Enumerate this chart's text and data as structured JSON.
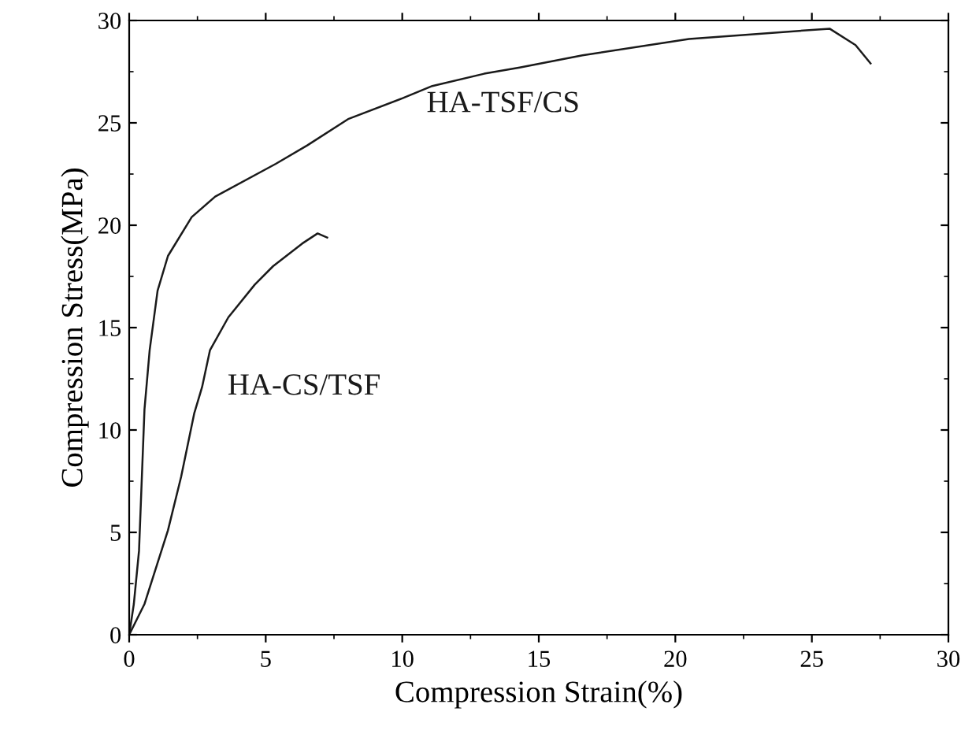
{
  "chart_data": {
    "type": "line",
    "xlabel": "Compression Strain(%)",
    "ylabel": "Compression Stress(MPa)",
    "xlim": [
      0,
      30
    ],
    "ylim": [
      0,
      30
    ],
    "xticks": [
      0,
      5,
      10,
      15,
      20,
      25,
      30
    ],
    "yticks": [
      0,
      5,
      10,
      15,
      20,
      25,
      30
    ],
    "grid": false,
    "legend": false,
    "marker": "none",
    "line_style": "solid",
    "series": [
      {
        "name": "HA-TSF/CS",
        "color": "#1a1a1a",
        "x": [
          0,
          0.17,
          0.36,
          0.56,
          0.75,
          1.04,
          1.42,
          2.29,
          3.15,
          5.37,
          6.52,
          8.04,
          10.0,
          11.1,
          13.0,
          14.3,
          16.6,
          20.5,
          25.65,
          26.6,
          27.15
        ],
        "values": [
          0,
          1.5,
          4.1,
          11.0,
          13.9,
          16.8,
          18.5,
          20.4,
          21.4,
          23.0,
          23.9,
          25.2,
          26.2,
          26.8,
          27.4,
          27.7,
          28.3,
          29.1,
          29.6,
          28.8,
          27.9
        ]
      },
      {
        "name": "HA-CS/TSF",
        "color": "#1a1a1a",
        "x": [
          0,
          0.56,
          1.42,
          1.9,
          2.38,
          2.67,
          2.96,
          3.63,
          4.6,
          5.27,
          6.33,
          6.9,
          7.25
        ],
        "values": [
          0,
          1.5,
          5.1,
          7.7,
          10.8,
          12.1,
          13.9,
          15.5,
          17.1,
          18.0,
          19.1,
          19.6,
          19.4
        ]
      }
    ]
  }
}
